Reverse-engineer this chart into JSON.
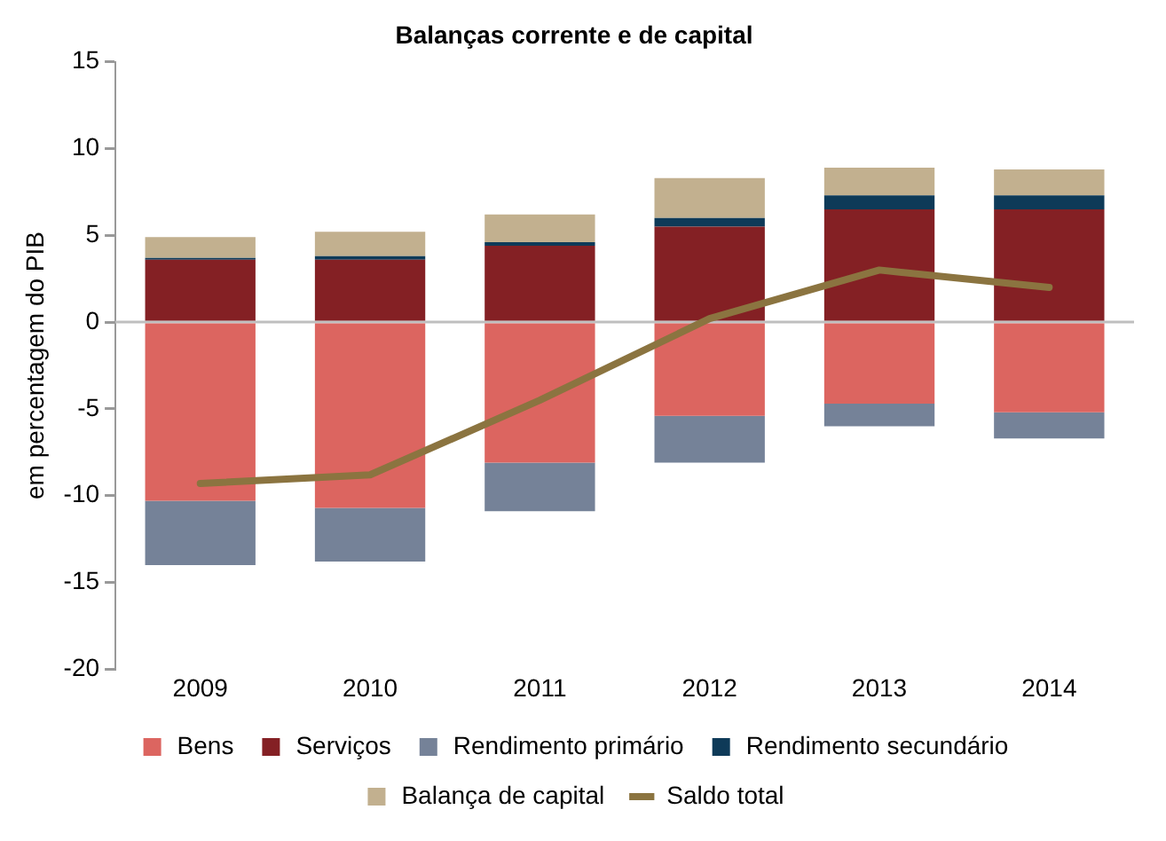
{
  "chart_data": {
    "type": "bar",
    "title": "Balanças corrente e de capital",
    "ylabel": "em percentagem do PIB",
    "stacked": true,
    "categories": [
      "2009",
      "2010",
      "2011",
      "2012",
      "2013",
      "2014"
    ],
    "series": [
      {
        "name": "Bens",
        "color": "#dc6560",
        "values": [
          -10.3,
          -10.7,
          -8.1,
          -5.4,
          -4.7,
          -5.2
        ]
      },
      {
        "name": "Serviços",
        "color": "#842024",
        "values": [
          3.6,
          3.6,
          4.4,
          5.5,
          6.5,
          6.5
        ]
      },
      {
        "name": "Rendimento primário",
        "color": "#758298",
        "values": [
          -3.7,
          -3.1,
          -2.8,
          -2.7,
          -1.3,
          -1.5
        ]
      },
      {
        "name": "Rendimento secundário",
        "color": "#0e3a58",
        "values": [
          0.1,
          0.2,
          0.2,
          0.5,
          0.8,
          0.8
        ]
      },
      {
        "name": "Balança de capital",
        "color": "#c2b08f",
        "values": [
          1.2,
          1.4,
          1.6,
          2.3,
          1.6,
          1.5
        ]
      },
      {
        "name": "Saldo total",
        "type": "line",
        "color": "#8b7440",
        "values": [
          -9.3,
          -8.8,
          -4.5,
          0.2,
          3.0,
          2.0
        ]
      }
    ],
    "ylim": [
      -20,
      15
    ],
    "yticks": [
      -20,
      -15,
      -10,
      -5,
      0,
      5,
      10,
      15
    ],
    "grid": false,
    "ref_lines": [
      {
        "axis": "y",
        "value": 0,
        "color": "#bfbfbf"
      }
    ],
    "legend": "bottom",
    "marker": "none"
  }
}
